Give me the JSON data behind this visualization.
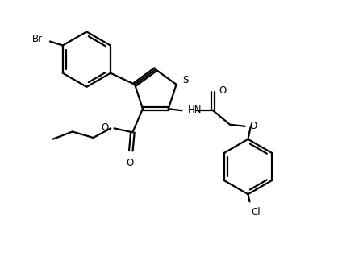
{
  "bg_color": "#ffffff",
  "line_color": "#000000",
  "line_width": 1.6,
  "font_size": 8.5,
  "figsize": [
    4.19,
    3.39
  ],
  "dpi": 100,
  "xlim": [
    0,
    10
  ],
  "ylim": [
    0,
    8.1
  ]
}
